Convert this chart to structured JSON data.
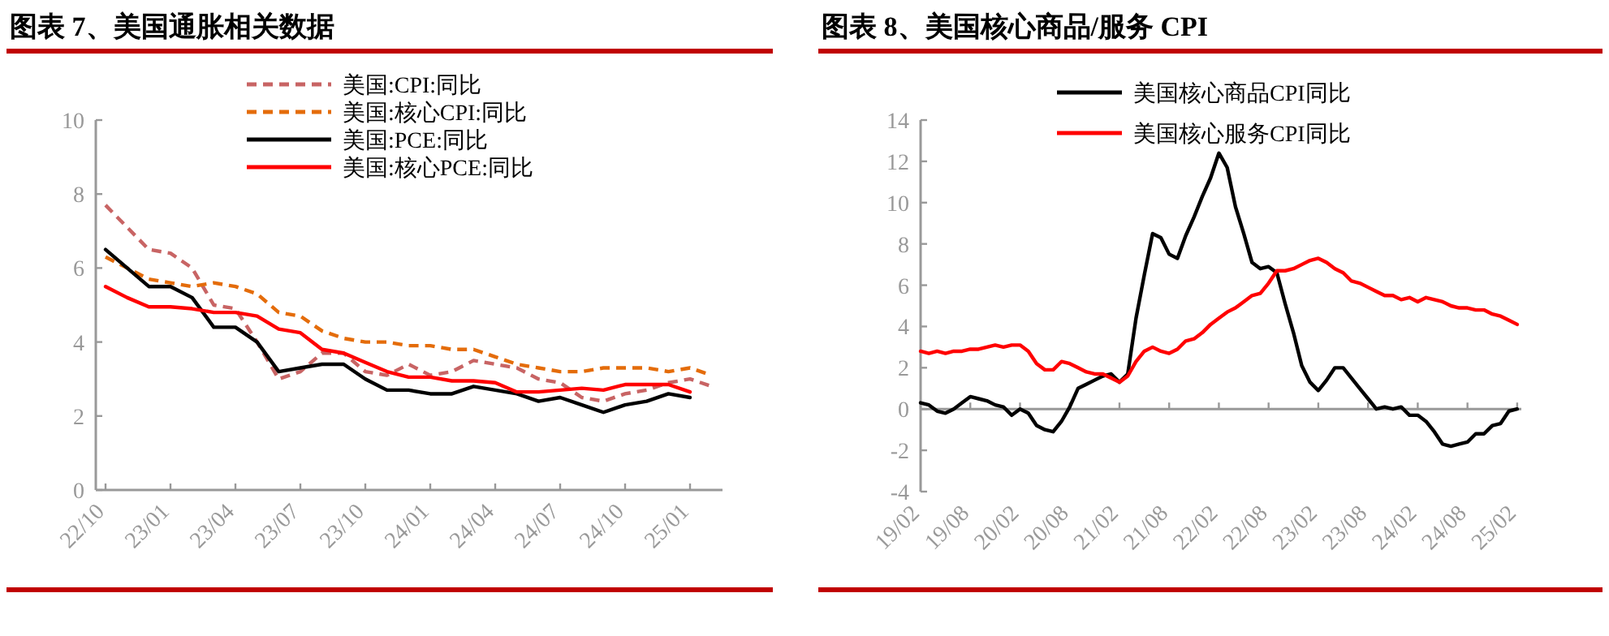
{
  "chart_data": [
    {
      "type": "line",
      "title": "图表 7、美国通胀相关数据",
      "categories": [
        "22/10",
        null,
        null,
        "23/01",
        null,
        null,
        "23/04",
        null,
        null,
        "23/07",
        null,
        null,
        "23/10",
        null,
        null,
        "24/01",
        null,
        null,
        "24/04",
        null,
        null,
        "24/07",
        null,
        null,
        "24/10",
        null,
        null,
        "25/01",
        null
      ],
      "series": [
        {
          "name": "美国:CPI:同比",
          "color": "#c86464",
          "line_style": "dashed",
          "values": [
            7.7,
            7.1,
            6.5,
            6.4,
            6.0,
            5.0,
            4.9,
            4.0,
            3.0,
            3.2,
            3.7,
            3.7,
            3.2,
            3.1,
            3.4,
            3.1,
            3.2,
            3.5,
            3.4,
            3.3,
            3.0,
            2.9,
            2.5,
            2.4,
            2.6,
            2.7,
            2.9,
            3.0,
            2.8
          ]
        },
        {
          "name": "美国:核心CPI:同比",
          "color": "#e46c0a",
          "line_style": "dashed",
          "values": [
            6.3,
            6.0,
            5.7,
            5.6,
            5.5,
            5.6,
            5.5,
            5.3,
            4.8,
            4.7,
            4.3,
            4.1,
            4.0,
            4.0,
            3.9,
            3.9,
            3.8,
            3.8,
            3.6,
            3.4,
            3.3,
            3.2,
            3.2,
            3.3,
            3.3,
            3.3,
            3.2,
            3.3,
            3.1
          ]
        },
        {
          "name": "美国:PCE:同比",
          "color": "#000000",
          "line_style": "solid",
          "values": [
            6.5,
            6.0,
            5.5,
            5.5,
            5.2,
            4.4,
            4.4,
            4.0,
            3.2,
            3.3,
            3.4,
            3.4,
            3.0,
            2.7,
            2.7,
            2.6,
            2.6,
            2.8,
            2.7,
            2.6,
            2.4,
            2.5,
            2.3,
            2.1,
            2.3,
            2.4,
            2.6,
            2.5,
            null
          ]
        },
        {
          "name": "美国:核心PCE:同比",
          "color": "#ff0000",
          "line_style": "solid",
          "values": [
            5.5,
            5.2,
            4.95,
            4.95,
            4.9,
            4.8,
            4.8,
            4.7,
            4.35,
            4.25,
            3.8,
            3.7,
            3.45,
            3.2,
            3.05,
            3.05,
            2.95,
            2.95,
            2.9,
            2.65,
            2.65,
            2.7,
            2.75,
            2.7,
            2.85,
            2.85,
            2.85,
            2.65,
            null
          ]
        }
      ],
      "ylim": [
        0,
        10
      ],
      "yticks": [
        0,
        2,
        4,
        6,
        8,
        10
      ],
      "legend": "top"
    },
    {
      "type": "line",
      "title": "图表 8、美国核心商品/服务 CPI",
      "categories": [
        "19/02",
        null,
        null,
        null,
        null,
        null,
        "19/08",
        null,
        null,
        null,
        null,
        null,
        "20/02",
        null,
        null,
        null,
        null,
        null,
        "20/08",
        null,
        null,
        null,
        null,
        null,
        "21/02",
        null,
        null,
        null,
        null,
        null,
        "21/08",
        null,
        null,
        null,
        null,
        null,
        "22/02",
        null,
        null,
        null,
        null,
        null,
        "22/08",
        null,
        null,
        null,
        null,
        null,
        "23/02",
        null,
        null,
        null,
        null,
        null,
        "23/08",
        null,
        null,
        null,
        null,
        null,
        "24/02",
        null,
        null,
        null,
        null,
        null,
        "24/08",
        null,
        null,
        null,
        null,
        null,
        "25/02"
      ],
      "series": [
        {
          "name": "美国核心商品CPI同比",
          "color": "#000000",
          "line_style": "solid",
          "values": [
            0.3,
            0.2,
            -0.1,
            -0.2,
            0.0,
            0.3,
            0.6,
            0.5,
            0.4,
            0.2,
            0.1,
            -0.3,
            0.0,
            -0.2,
            -0.8,
            -1.0,
            -1.1,
            -0.6,
            0.1,
            1.0,
            1.2,
            1.4,
            1.6,
            1.7,
            1.3,
            1.7,
            4.4,
            6.5,
            8.5,
            8.3,
            7.5,
            7.3,
            8.4,
            9.3,
            10.3,
            11.2,
            12.4,
            11.7,
            9.8,
            8.5,
            7.1,
            6.8,
            6.9,
            6.6,
            5.1,
            3.7,
            2.1,
            1.3,
            0.9,
            1.4,
            2.0,
            2.0,
            1.5,
            1.0,
            0.5,
            0.0,
            0.1,
            0.0,
            0.1,
            -0.3,
            -0.3,
            -0.6,
            -1.1,
            -1.7,
            -1.8,
            -1.7,
            -1.6,
            -1.2,
            -1.2,
            -0.8,
            -0.7,
            -0.1,
            0.0
          ]
        },
        {
          "name": "美国核心服务CPI同比",
          "color": "#ff0000",
          "line_style": "solid",
          "values": [
            2.8,
            2.7,
            2.8,
            2.7,
            2.8,
            2.8,
            2.9,
            2.9,
            3.0,
            3.1,
            3.0,
            3.1,
            3.1,
            2.8,
            2.2,
            1.9,
            1.9,
            2.3,
            2.2,
            2.0,
            1.8,
            1.7,
            1.7,
            1.5,
            1.3,
            1.6,
            2.3,
            2.8,
            3.0,
            2.8,
            2.7,
            2.9,
            3.3,
            3.4,
            3.7,
            4.1,
            4.4,
            4.7,
            4.9,
            5.2,
            5.5,
            5.6,
            6.1,
            6.7,
            6.7,
            6.8,
            7.0,
            7.2,
            7.3,
            7.1,
            6.8,
            6.6,
            6.2,
            6.1,
            5.9,
            5.7,
            5.5,
            5.5,
            5.3,
            5.4,
            5.2,
            5.4,
            5.3,
            5.2,
            5.0,
            4.9,
            4.9,
            4.8,
            4.8,
            4.6,
            4.5,
            4.3,
            4.1
          ]
        }
      ],
      "ylim": [
        -4,
        14
      ],
      "yticks": [
        -4,
        -2,
        0,
        2,
        4,
        6,
        8,
        10,
        12,
        14
      ],
      "legend": "top"
    }
  ]
}
